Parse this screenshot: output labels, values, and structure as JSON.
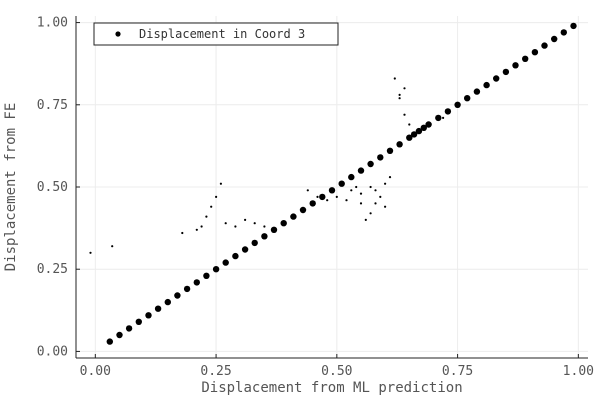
{
  "chart_data": {
    "type": "scatter",
    "xlabel": "Displacement from ML prediction",
    "ylabel": "Displacement from FE",
    "xlim": [
      -0.04,
      1.02
    ],
    "ylim": [
      -0.02,
      1.02
    ],
    "xticks": [
      0.0,
      0.25,
      0.5,
      0.75,
      1.0
    ],
    "yticks": [
      0.0,
      0.25,
      0.5,
      0.75,
      1.0
    ],
    "x_tick_labels": [
      "0.00",
      "0.25",
      "0.50",
      "0.75",
      "1.00"
    ],
    "y_tick_labels": [
      "0.00",
      "0.25",
      "0.50",
      "0.75",
      "1.00"
    ],
    "grid": true,
    "legend_position": "top-left",
    "series": [
      {
        "name": "Displacement in Coord 3",
        "color": "#000000",
        "x": [
          0.03,
          0.05,
          0.07,
          0.09,
          0.11,
          0.13,
          0.15,
          0.17,
          0.19,
          0.21,
          0.23,
          0.25,
          0.27,
          0.29,
          0.31,
          0.33,
          0.35,
          0.37,
          0.39,
          0.41,
          0.43,
          0.45,
          0.47,
          0.49,
          0.51,
          0.53,
          0.55,
          0.57,
          0.59,
          0.61,
          0.63,
          0.65,
          0.67,
          0.69,
          0.71,
          0.73,
          0.75,
          0.77,
          0.79,
          0.81,
          0.83,
          0.85,
          0.87,
          0.89,
          0.91,
          0.93,
          0.95,
          0.97,
          0.99,
          0.24,
          0.25,
          0.26,
          0.23,
          0.22,
          0.21,
          0.27,
          0.29,
          0.31,
          0.33,
          0.35,
          0.18,
          0.62,
          0.63,
          0.64,
          0.65,
          0.6,
          0.58,
          0.57,
          0.56,
          0.55,
          0.54,
          0.53,
          0.5,
          0.52,
          0.57,
          0.58,
          0.59,
          0.6,
          0.61,
          0.55,
          0.48,
          0.46,
          0.44,
          0.66,
          0.68,
          0.72,
          -0.01,
          0.035,
          0.63,
          0.64
        ],
        "y": [
          0.03,
          0.05,
          0.07,
          0.09,
          0.11,
          0.13,
          0.15,
          0.17,
          0.19,
          0.21,
          0.23,
          0.25,
          0.27,
          0.29,
          0.31,
          0.33,
          0.35,
          0.37,
          0.39,
          0.41,
          0.43,
          0.45,
          0.47,
          0.49,
          0.51,
          0.53,
          0.55,
          0.57,
          0.59,
          0.61,
          0.63,
          0.65,
          0.67,
          0.69,
          0.71,
          0.73,
          0.75,
          0.77,
          0.79,
          0.81,
          0.83,
          0.85,
          0.87,
          0.89,
          0.91,
          0.93,
          0.95,
          0.97,
          0.99,
          0.44,
          0.47,
          0.51,
          0.41,
          0.38,
          0.37,
          0.39,
          0.38,
          0.4,
          0.39,
          0.38,
          0.36,
          0.83,
          0.77,
          0.72,
          0.69,
          0.44,
          0.45,
          0.42,
          0.4,
          0.48,
          0.5,
          0.49,
          0.47,
          0.46,
          0.5,
          0.49,
          0.47,
          0.51,
          0.53,
          0.45,
          0.46,
          0.47,
          0.49,
          0.66,
          0.68,
          0.71,
          0.3,
          0.32,
          0.78,
          0.8
        ]
      }
    ]
  }
}
